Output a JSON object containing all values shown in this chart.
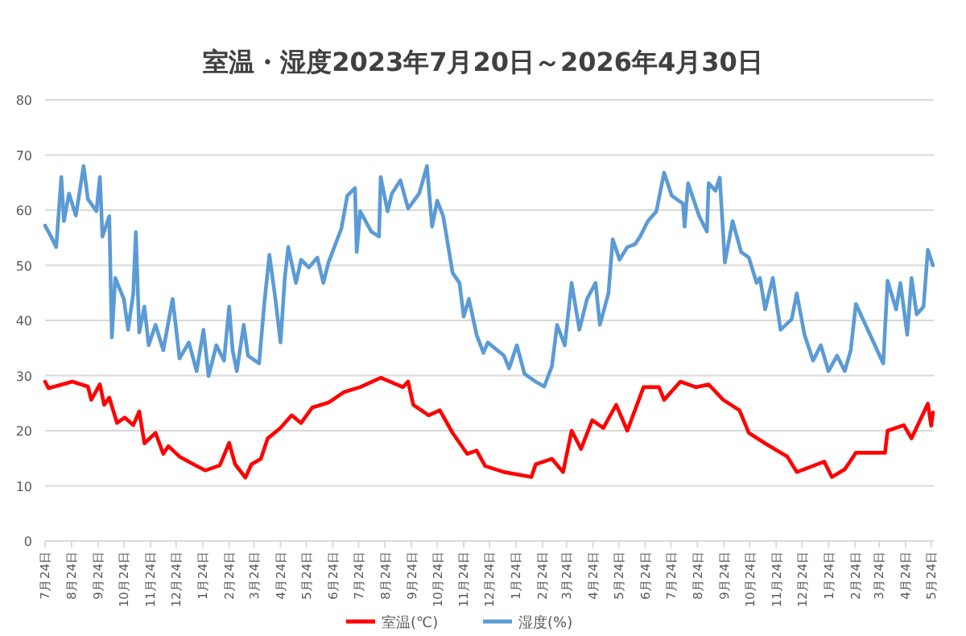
{
  "chart_data": {
    "type": "line",
    "title": "室温・湿度2023年7月20日～2026年4月30日",
    "xlim": [
      "2023-07-24",
      "2026-05-27"
    ],
    "xticks": [
      {
        "value": "2023-07-24",
        "label": "7月24日"
      },
      {
        "value": "2023-08-24",
        "label": "8月24日"
      },
      {
        "value": "2023-09-24",
        "label": "9月24日"
      },
      {
        "value": "2023-10-24",
        "label": "10月24日"
      },
      {
        "value": "2023-11-24",
        "label": "11月24日"
      },
      {
        "value": "2023-12-24",
        "label": "12月24日"
      },
      {
        "value": "2024-01-24",
        "label": "1月24日"
      },
      {
        "value": "2024-02-24",
        "label": "2月24日"
      },
      {
        "value": "2024-03-24",
        "label": "3月24日"
      },
      {
        "value": "2024-04-24",
        "label": "4月24日"
      },
      {
        "value": "2024-05-24",
        "label": "5月24日"
      },
      {
        "value": "2024-06-24",
        "label": "6月24日"
      },
      {
        "value": "2024-07-24",
        "label": "7月24日"
      },
      {
        "value": "2024-08-24",
        "label": "8月24日"
      },
      {
        "value": "2024-09-24",
        "label": "9月24日"
      },
      {
        "value": "2024-10-24",
        "label": "10月24日"
      },
      {
        "value": "2024-11-24",
        "label": "11月24日"
      },
      {
        "value": "2024-12-24",
        "label": "12月24日"
      },
      {
        "value": "2025-01-24",
        "label": "1月24日"
      },
      {
        "value": "2025-02-24",
        "label": "2月24日"
      },
      {
        "value": "2025-03-24",
        "label": "3月24日"
      },
      {
        "value": "2025-04-24",
        "label": "4月24日"
      },
      {
        "value": "2025-05-24",
        "label": "5月24日"
      },
      {
        "value": "2025-06-24",
        "label": "6月24日"
      },
      {
        "value": "2025-07-24",
        "label": "7月24日"
      },
      {
        "value": "2025-08-24",
        "label": "8月24日"
      },
      {
        "value": "2025-09-24",
        "label": "9月24日"
      },
      {
        "value": "2025-10-24",
        "label": "10月24日"
      },
      {
        "value": "2025-11-24",
        "label": "11月24日"
      },
      {
        "value": "2025-12-24",
        "label": "12月24日"
      },
      {
        "value": "2026-01-24",
        "label": "1月24日"
      },
      {
        "value": "2026-02-24",
        "label": "2月24日"
      },
      {
        "value": "2026-03-24",
        "label": "3月24日"
      },
      {
        "value": "2026-04-24",
        "label": "4月24日"
      },
      {
        "value": "2026-05-24",
        "label": "5月24日"
      }
    ],
    "ylim": [
      0,
      80
    ],
    "yticks": [
      0,
      10,
      20,
      30,
      40,
      50,
      60,
      70,
      80
    ],
    "grid": "y",
    "legend": "bottom",
    "series": [
      {
        "name": "室温(℃)",
        "color": "#ff0000",
        "x": [
          "2023-07-24",
          "2023-07-28",
          "2023-08-25",
          "2023-09-12",
          "2023-09-16",
          "2023-09-26",
          "2023-10-01",
          "2023-10-07",
          "2023-10-16",
          "2023-10-25",
          "2023-11-04",
          "2023-11-11",
          "2023-11-17",
          "2023-11-30",
          "2023-12-09",
          "2023-12-15",
          "2023-12-28",
          "2024-01-16",
          "2024-01-27",
          "2024-02-13",
          "2024-02-24",
          "2024-03-02",
          "2024-03-14",
          "2024-03-21",
          "2024-04-01",
          "2024-04-09",
          "2024-04-24",
          "2024-05-07",
          "2024-05-18",
          "2024-05-31",
          "2024-06-19",
          "2024-07-07",
          "2024-07-26",
          "2024-08-19",
          "2024-09-14",
          "2024-09-20",
          "2024-09-26",
          "2024-10-14",
          "2024-10-27",
          "2024-11-11",
          "2024-11-28",
          "2024-12-09",
          "2024-12-19",
          "2025-01-10",
          "2025-02-11",
          "2025-02-16",
          "2025-03-07",
          "2025-03-20",
          "2025-03-30",
          "2025-04-10",
          "2025-04-23",
          "2025-05-06",
          "2025-05-21",
          "2025-06-03",
          "2025-06-22",
          "2025-07-10",
          "2025-07-16",
          "2025-08-04",
          "2025-08-22",
          "2025-09-06",
          "2025-09-23",
          "2025-10-12",
          "2025-10-23",
          "2025-11-11",
          "2025-12-07",
          "2025-12-18",
          "2026-01-19",
          "2026-01-28",
          "2026-02-12",
          "2026-02-25",
          "2026-03-31",
          "2026-04-03",
          "2026-04-22",
          "2026-05-01",
          "2026-05-20",
          "2026-05-24",
          "2026-05-26"
        ],
        "values": [
          28.9,
          27.7,
          28.9,
          28,
          25.6,
          28.4,
          24.7,
          26,
          21.4,
          22.4,
          21,
          23.5,
          17.7,
          19.6,
          15.8,
          17.2,
          15.3,
          13.7,
          12.8,
          13.7,
          17.8,
          13.9,
          11.5,
          13.9,
          14.9,
          18.6,
          20.5,
          22.8,
          21.4,
          24.2,
          25.1,
          27,
          27.9,
          29.6,
          27.9,
          28.9,
          24.7,
          22.8,
          23.7,
          19.6,
          15.8,
          16.4,
          13.6,
          12.5,
          11.6,
          13.9,
          14.9,
          12.5,
          20,
          16.7,
          21.9,
          20.5,
          24.7,
          20,
          27.9,
          27.9,
          25.6,
          28.9,
          27.9,
          28.4,
          25.6,
          23.7,
          19.6,
          17.7,
          15.3,
          12.5,
          14.4,
          11.6,
          13,
          16,
          16,
          20,
          21,
          18.6,
          24.9,
          20.9,
          23.3
        ]
      },
      {
        "name": "湿度(%)",
        "color": "#5b9bd5",
        "x": [
          "2023-07-24",
          "2023-07-31",
          "2023-08-06",
          "2023-08-12",
          "2023-08-15",
          "2023-08-21",
          "2023-08-29",
          "2023-09-07",
          "2023-09-12",
          "2023-09-22",
          "2023-09-26",
          "2023-09-29",
          "2023-10-07",
          "2023-10-10",
          "2023-10-14",
          "2023-10-24",
          "2023-10-29",
          "2023-11-04",
          "2023-11-07",
          "2023-11-11",
          "2023-11-17",
          "2023-11-22",
          "2023-11-30",
          "2023-12-09",
          "2023-12-20",
          "2023-12-28",
          "2024-01-08",
          "2024-01-17",
          "2024-01-25",
          "2024-01-31",
          "2024-02-09",
          "2024-02-18",
          "2024-02-24",
          "2024-02-28",
          "2024-03-04",
          "2024-03-12",
          "2024-03-17",
          "2024-03-30",
          "2024-04-05",
          "2024-04-11",
          "2024-04-18",
          "2024-04-24",
          "2024-04-29",
          "2024-05-03",
          "2024-05-12",
          "2024-05-18",
          "2024-05-27",
          "2024-06-06",
          "2024-06-13",
          "2024-06-19",
          "2024-06-28",
          "2024-07-04",
          "2024-07-11",
          "2024-07-20",
          "2024-07-22",
          "2024-07-26",
          "2024-08-08",
          "2024-08-17",
          "2024-08-19",
          "2024-08-27",
          "2024-09-01",
          "2024-09-11",
          "2024-09-20",
          "2024-10-03",
          "2024-10-12",
          "2024-10-18",
          "2024-10-24",
          "2024-10-31",
          "2024-11-06",
          "2024-11-11",
          "2024-11-19",
          "2024-11-24",
          "2024-11-30",
          "2024-12-09",
          "2024-12-17",
          "2024-12-22",
          "2025-01-10",
          "2025-01-16",
          "2025-01-25",
          "2025-02-03",
          "2025-02-16",
          "2025-02-26",
          "2025-03-07",
          "2025-03-13",
          "2025-03-22",
          "2025-03-30",
          "2025-04-08",
          "2025-04-17",
          "2025-04-27",
          "2025-05-02",
          "2025-05-12",
          "2025-05-17",
          "2025-05-25",
          "2025-06-03",
          "2025-06-12",
          "2025-06-18",
          "2025-06-27",
          "2025-07-07",
          "2025-07-16",
          "2025-07-25",
          "2025-08-07",
          "2025-08-09",
          "2025-08-13",
          "2025-08-26",
          "2025-09-04",
          "2025-09-06",
          "2025-09-14",
          "2025-09-19",
          "2025-09-25",
          "2025-10-04",
          "2025-10-14",
          "2025-10-23",
          "2025-11-01",
          "2025-11-05",
          "2025-11-11",
          "2025-11-20",
          "2025-11-29",
          "2025-12-12",
          "2025-12-18",
          "2025-12-27",
          "2026-01-06",
          "2026-01-15",
          "2026-01-24",
          "2026-02-03",
          "2026-02-12",
          "2026-02-19",
          "2026-02-25",
          "2026-03-29",
          "2026-04-03",
          "2026-04-13",
          "2026-04-18",
          "2026-04-26",
          "2026-05-01",
          "2026-05-07",
          "2026-05-15",
          "2026-05-20",
          "2026-05-26"
        ],
        "values": [
          57.2,
          55.2,
          53.3,
          66,
          58,
          63,
          59,
          68,
          62,
          59.8,
          66,
          55.2,
          58.9,
          36.9,
          47.7,
          43.9,
          38.3,
          44.9,
          56,
          37.8,
          42.5,
          35.5,
          39.2,
          34.6,
          43.9,
          33.1,
          36,
          30.8,
          38.3,
          29.9,
          35.5,
          32.7,
          42.5,
          34.6,
          30.8,
          39.2,
          33.6,
          32.2,
          43,
          51.9,
          43.9,
          36,
          47.7,
          53.3,
          46.8,
          51,
          49.6,
          51.4,
          46.8,
          50.5,
          54.2,
          56.6,
          62.6,
          64,
          52.4,
          59.8,
          56.1,
          55.2,
          66,
          59.8,
          63,
          65.4,
          60.3,
          63,
          68,
          57,
          61.7,
          58.9,
          53.3,
          48.6,
          46.8,
          40.7,
          43.9,
          37.4,
          34.1,
          36,
          33.6,
          31.3,
          35.5,
          30.3,
          28.9,
          28,
          31.7,
          39.2,
          35.5,
          46.8,
          38.3,
          43.9,
          46.8,
          39.2,
          44.9,
          54.7,
          51,
          53.3,
          53.8,
          55.2,
          58,
          59.8,
          66.8,
          62.6,
          61.2,
          57,
          64.9,
          58.9,
          56.1,
          64.9,
          63.5,
          65.9,
          50.5,
          58,
          52.4,
          51.4,
          46.8,
          47.7,
          42,
          47.7,
          38.3,
          40.2,
          44.9,
          37.4,
          32.7,
          35.5,
          30.8,
          33.6,
          30.8,
          34.6,
          43,
          32.2,
          47.2,
          42,
          46.8,
          37.4,
          47.7,
          41.1,
          42.5,
          52.8,
          50
        ]
      }
    ]
  }
}
